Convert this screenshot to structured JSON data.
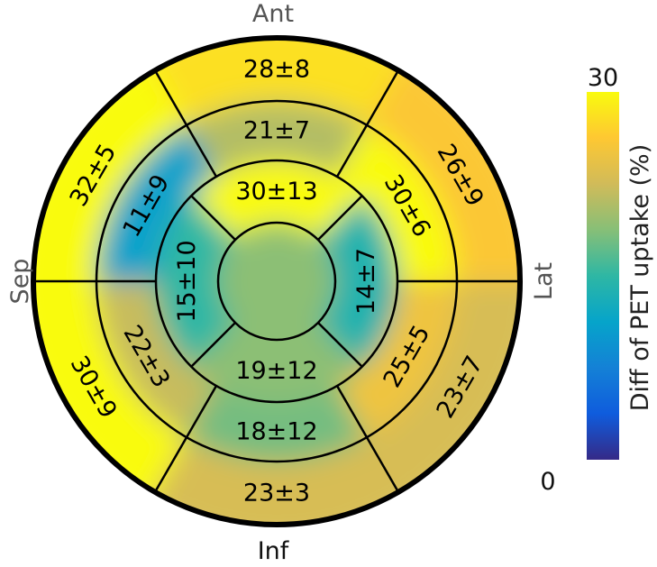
{
  "chart_data": {
    "type": "polar-bullseye",
    "orientation_labels": {
      "top": "Ant",
      "bottom": "Inf",
      "left": "Sep",
      "right": "Lat"
    },
    "colorbar": {
      "label": "Diff of PET uptake (%)",
      "min": 0,
      "max": 30,
      "min_label": "0",
      "max_label": "30",
      "colormap": [
        "#352a87",
        "#0f5cdd",
        "#1481d6",
        "#06a4ca",
        "#2eb7a4",
        "#87bf77",
        "#d1bb59",
        "#fec832",
        "#f9fb0e"
      ]
    },
    "segments": [
      {
        "segment": 1,
        "ring": "basal",
        "region": "Ant",
        "value": 28,
        "label": "28±8"
      },
      {
        "segment": 2,
        "ring": "basal",
        "region": "Ant-Sep",
        "value": 32,
        "label": "32±5"
      },
      {
        "segment": 3,
        "ring": "basal",
        "region": "Inf-Sep",
        "value": 30,
        "label": "30±9"
      },
      {
        "segment": 4,
        "ring": "basal",
        "region": "Inf",
        "value": 23,
        "label": "23±3"
      },
      {
        "segment": 5,
        "ring": "basal",
        "region": "Inf-Lat",
        "value": 23,
        "label": "23±7"
      },
      {
        "segment": 6,
        "ring": "basal",
        "region": "Ant-Lat",
        "value": 26,
        "label": "26±9"
      },
      {
        "segment": 7,
        "ring": "mid",
        "region": "Ant",
        "value": 21,
        "label": "21±7"
      },
      {
        "segment": 8,
        "ring": "mid",
        "region": "Ant-Sep",
        "value": 11,
        "label": "11±9"
      },
      {
        "segment": 9,
        "ring": "mid",
        "region": "Inf-Sep",
        "value": 22,
        "label": "22±3"
      },
      {
        "segment": 10,
        "ring": "mid",
        "region": "Inf",
        "value": 18,
        "label": "18±12"
      },
      {
        "segment": 11,
        "ring": "mid",
        "region": "Inf-Lat",
        "value": 25,
        "label": "25±5"
      },
      {
        "segment": 12,
        "ring": "mid",
        "region": "Ant-Lat",
        "value": 30,
        "label": "30±6"
      },
      {
        "segment": 13,
        "ring": "apical",
        "region": "Ant",
        "value": 30,
        "label": "30±13"
      },
      {
        "segment": 14,
        "ring": "apical",
        "region": "Sep",
        "value": 15,
        "label": "15±10"
      },
      {
        "segment": 15,
        "ring": "apical",
        "region": "Inf",
        "value": 19,
        "label": "19±12"
      },
      {
        "segment": 16,
        "ring": "apical",
        "region": "Lat",
        "value": 14,
        "label": "14±7"
      }
    ],
    "apex_value": 19
  }
}
